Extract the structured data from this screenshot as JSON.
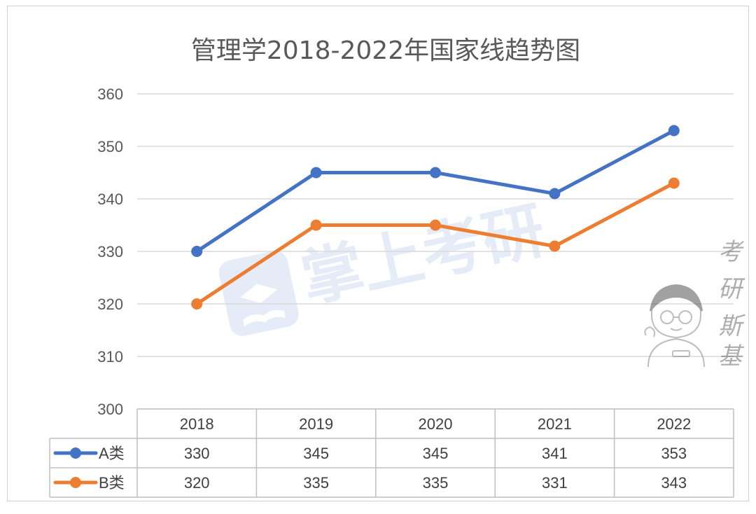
{
  "chart_data": {
    "type": "line",
    "title": "管理学2018-2022年国家线趋势图",
    "categories": [
      "2018",
      "2019",
      "2020",
      "2021",
      "2022"
    ],
    "series": [
      {
        "name": "A类",
        "color": "#4472c4",
        "values": [
          330,
          345,
          345,
          341,
          353
        ]
      },
      {
        "name": "B类",
        "color": "#ed7d31",
        "values": [
          320,
          335,
          335,
          331,
          343
        ]
      }
    ],
    "yticks": [
      "300",
      "310",
      "320",
      "330",
      "340",
      "350",
      "360"
    ],
    "ylim": [
      300,
      360
    ],
    "grid": true,
    "legend": "data-table",
    "data_table": {
      "rows": [
        {
          "label": "A类",
          "cells": [
            "330",
            "345",
            "345",
            "341",
            "353"
          ]
        },
        {
          "label": "B类",
          "cells": [
            "320",
            "335",
            "335",
            "331",
            "343"
          ]
        }
      ]
    }
  },
  "watermarks": {
    "center_logo_text": "掌上考研",
    "corner_text": [
      "考",
      "研",
      "斯",
      "基"
    ],
    "corner_icon": "cartoon-boy-icon"
  }
}
